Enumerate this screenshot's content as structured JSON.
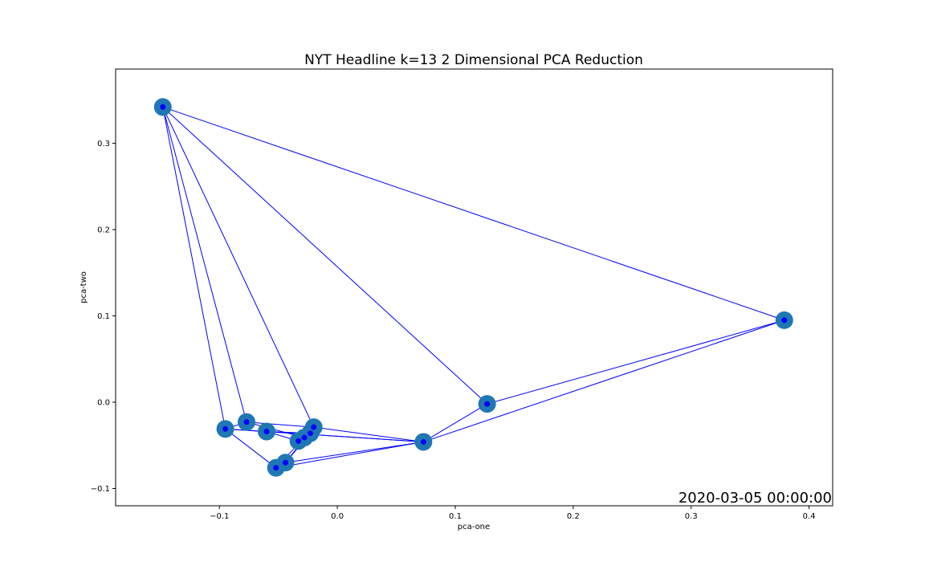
{
  "chart_data": {
    "type": "scatter",
    "title": "NYT Headline k=13 2 Dimensional PCA Reduction",
    "xlabel": "pca-one",
    "ylabel": "pca-two",
    "xlim": [
      -0.188,
      0.42
    ],
    "ylim": [
      -0.12,
      0.386
    ],
    "x_ticks": [
      -0.1,
      0.0,
      0.1,
      0.2,
      0.3,
      0.4
    ],
    "y_ticks": [
      -0.1,
      0.0,
      0.1,
      0.2,
      0.3
    ],
    "x_tick_labels": [
      "−0.1",
      "0.0",
      "0.1",
      "0.2",
      "0.3",
      "0.4"
    ],
    "y_tick_labels": [
      "−0.1",
      "0.0",
      "0.1",
      "0.2",
      "0.3"
    ],
    "grid": false,
    "annotation": "2020-03-05 00:00:00",
    "colors": {
      "marker": "#1f77b4",
      "center": "#0000ff",
      "edge": "#0000ff"
    },
    "points": [
      {
        "x": -0.148,
        "y": 0.342
      },
      {
        "x": 0.379,
        "y": 0.095
      },
      {
        "x": 0.127,
        "y": -0.002
      },
      {
        "x": -0.095,
        "y": -0.031
      },
      {
        "x": -0.077,
        "y": -0.023
      },
      {
        "x": -0.06,
        "y": -0.034
      },
      {
        "x": -0.02,
        "y": -0.029
      },
      {
        "x": -0.023,
        "y": -0.036
      },
      {
        "x": -0.028,
        "y": -0.041
      },
      {
        "x": -0.033,
        "y": -0.045
      },
      {
        "x": 0.073,
        "y": -0.046
      },
      {
        "x": -0.044,
        "y": -0.07
      },
      {
        "x": -0.052,
        "y": -0.076
      }
    ],
    "edges": [
      [
        0,
        1
      ],
      [
        0,
        2
      ],
      [
        0,
        3
      ],
      [
        0,
        4
      ],
      [
        0,
        6
      ],
      [
        1,
        2
      ],
      [
        1,
        10
      ],
      [
        2,
        10
      ],
      [
        3,
        4
      ],
      [
        3,
        5
      ],
      [
        3,
        12
      ],
      [
        3,
        10
      ],
      [
        4,
        6
      ],
      [
        4,
        8
      ],
      [
        5,
        7
      ],
      [
        5,
        9
      ],
      [
        5,
        10
      ],
      [
        6,
        10
      ],
      [
        6,
        9
      ],
      [
        6,
        11
      ],
      [
        7,
        11
      ],
      [
        8,
        12
      ],
      [
        10,
        11
      ],
      [
        10,
        12
      ]
    ]
  }
}
